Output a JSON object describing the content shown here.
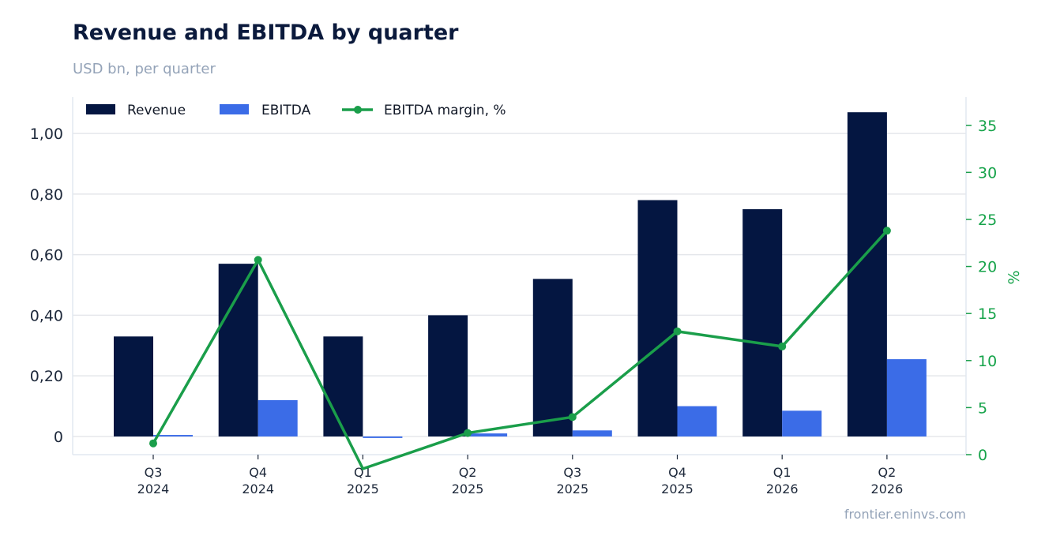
{
  "header": {
    "title": "Revenue and EBITDA by quarter",
    "subtitle": "USD bn, per quarter"
  },
  "footer": {
    "source": "frontier.eninvs.com"
  },
  "colors": {
    "revenue": "#041641",
    "ebitda": "#3b6ce7",
    "margin": "#1a9e4a",
    "grid": "#e5e7eb"
  },
  "chart_data": {
    "type": "bar",
    "categories": [
      [
        "Q3",
        "2024"
      ],
      [
        "Q4",
        "2024"
      ],
      [
        "Q1",
        "2025"
      ],
      [
        "Q2",
        "2025"
      ],
      [
        "Q3",
        "2025"
      ],
      [
        "Q4",
        "2025"
      ],
      [
        "Q1",
        "2026"
      ],
      [
        "Q2",
        "2026"
      ]
    ],
    "series": [
      {
        "name": "Revenue",
        "type": "bar",
        "axis": "left",
        "values": [
          0.33,
          0.57,
          0.33,
          0.4,
          0.52,
          0.78,
          0.75,
          1.07
        ]
      },
      {
        "name": "EBITDA",
        "type": "bar",
        "axis": "left",
        "values": [
          0.005,
          0.12,
          -0.005,
          0.01,
          0.02,
          0.1,
          0.085,
          0.255
        ]
      },
      {
        "name": "EBITDA margin, %",
        "type": "line",
        "axis": "right",
        "values": [
          1.2,
          20.7,
          -1.5,
          2.3,
          4.0,
          13.1,
          11.5,
          23.8
        ]
      }
    ],
    "ylim": [
      -0.06,
      1.12
    ],
    "yticks": [
      0,
      0.2,
      0.4,
      0.6,
      0.8,
      1.0
    ],
    "ytick_labels": [
      "0",
      "0,20",
      "0,40",
      "0,60",
      "0,80",
      "1,00"
    ],
    "y2lim": [
      0,
      38
    ],
    "y2ticks": [
      0,
      5,
      10,
      15,
      20,
      25,
      30,
      35
    ],
    "y2label": "%",
    "grid": true,
    "legend": "top-left"
  }
}
